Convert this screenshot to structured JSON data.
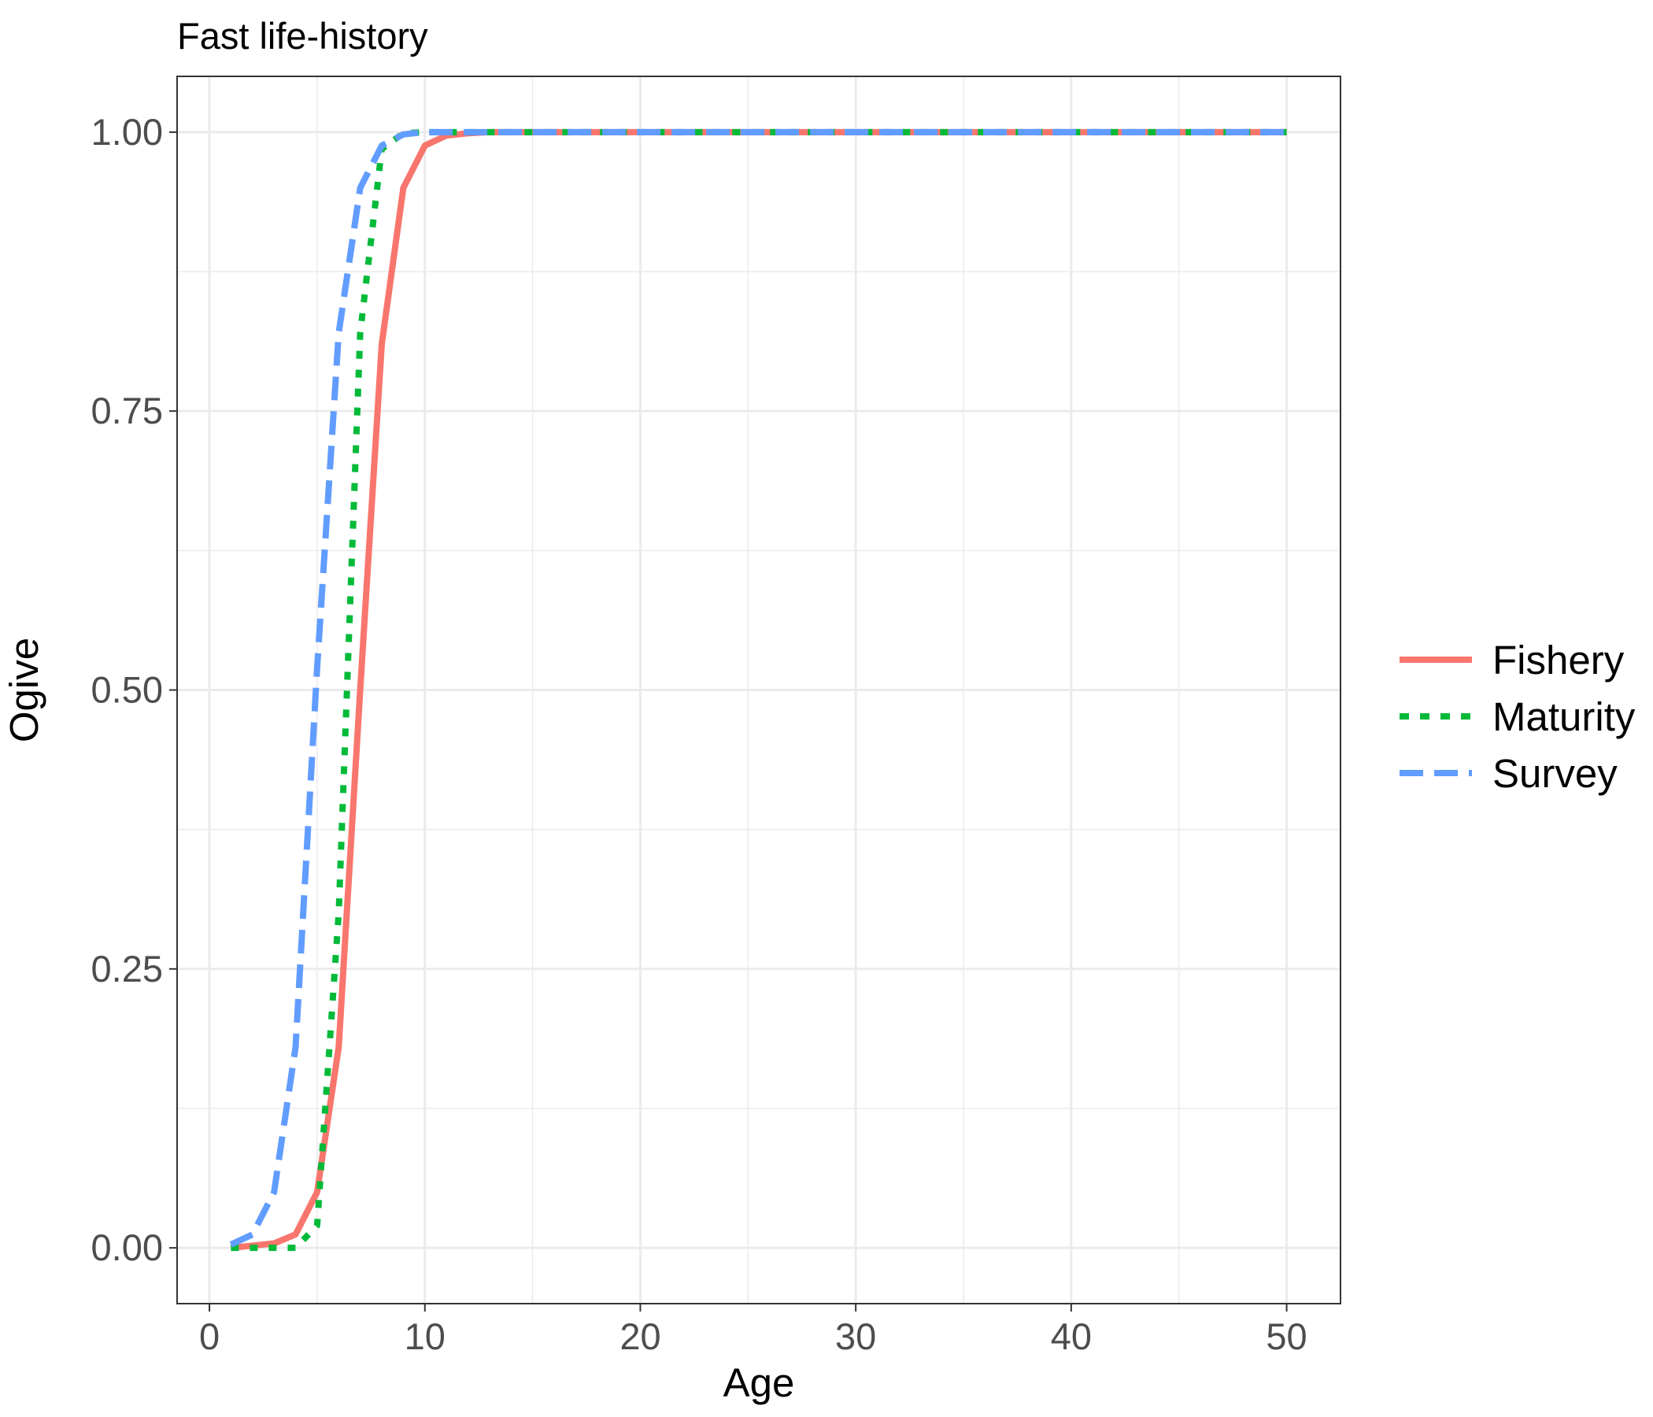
{
  "chart_data": {
    "type": "line",
    "title": "Fast life-history",
    "xlabel": "Age",
    "ylabel": "Ogive",
    "xlim": [
      -1.5,
      52.5
    ],
    "ylim": [
      -0.05,
      1.05
    ],
    "xticks": [
      0,
      10,
      20,
      30,
      40,
      50
    ],
    "xtick_labels": [
      "0",
      "10",
      "20",
      "30",
      "40",
      "50"
    ],
    "yticks": [
      0,
      0.25,
      0.5,
      0.75,
      1.0
    ],
    "ytick_labels": [
      "0.00",
      "0.25",
      "0.50",
      "0.75",
      "1.00"
    ],
    "grid": true,
    "legend_position": "right",
    "x": [
      1,
      2,
      3,
      4,
      5,
      6,
      7,
      8,
      9,
      10,
      11,
      12,
      13,
      14,
      15,
      16,
      17,
      18,
      19,
      20,
      21,
      22,
      23,
      24,
      25,
      26,
      27,
      28,
      29,
      30,
      31,
      32,
      33,
      34,
      35,
      36,
      37,
      38,
      39,
      40,
      41,
      42,
      43,
      44,
      45,
      46,
      47,
      48,
      49,
      50
    ],
    "series": [
      {
        "name": "Fishery",
        "color": "#F8766D",
        "dash": "solid",
        "values": [
          0.0,
          0.002,
          0.004,
          0.012,
          0.05,
          0.18,
          0.5,
          0.81,
          0.95,
          0.988,
          0.997,
          0.999,
          1,
          1,
          1,
          1,
          1,
          1,
          1,
          1,
          1,
          1,
          1,
          1,
          1,
          1,
          1,
          1,
          1,
          1,
          1,
          1,
          1,
          1,
          1,
          1,
          1,
          1,
          1,
          1,
          1,
          1,
          1,
          1,
          1,
          1,
          1,
          1,
          1,
          1
        ]
      },
      {
        "name": "Maturity",
        "color": "#00BA38",
        "dash": "dotted",
        "values": [
          0.0,
          0.0,
          0.0,
          0.0,
          0.02,
          0.3,
          0.82,
          0.985,
          0.999,
          1,
          1,
          1,
          1,
          1,
          1,
          1,
          1,
          1,
          1,
          1,
          1,
          1,
          1,
          1,
          1,
          1,
          1,
          1,
          1,
          1,
          1,
          1,
          1,
          1,
          1,
          1,
          1,
          1,
          1,
          1,
          1,
          1,
          1,
          1,
          1,
          1,
          1,
          1,
          1,
          1
        ]
      },
      {
        "name": "Survey",
        "color": "#619CFF",
        "dash": "dashed",
        "values": [
          0.003,
          0.012,
          0.05,
          0.18,
          0.52,
          0.82,
          0.95,
          0.988,
          0.998,
          1,
          1,
          1,
          1,
          1,
          1,
          1,
          1,
          1,
          1,
          1,
          1,
          1,
          1,
          1,
          1,
          1,
          1,
          1,
          1,
          1,
          1,
          1,
          1,
          1,
          1,
          1,
          1,
          1,
          1,
          1,
          1,
          1,
          1,
          1,
          1,
          1,
          1,
          1,
          1,
          1
        ]
      }
    ]
  }
}
